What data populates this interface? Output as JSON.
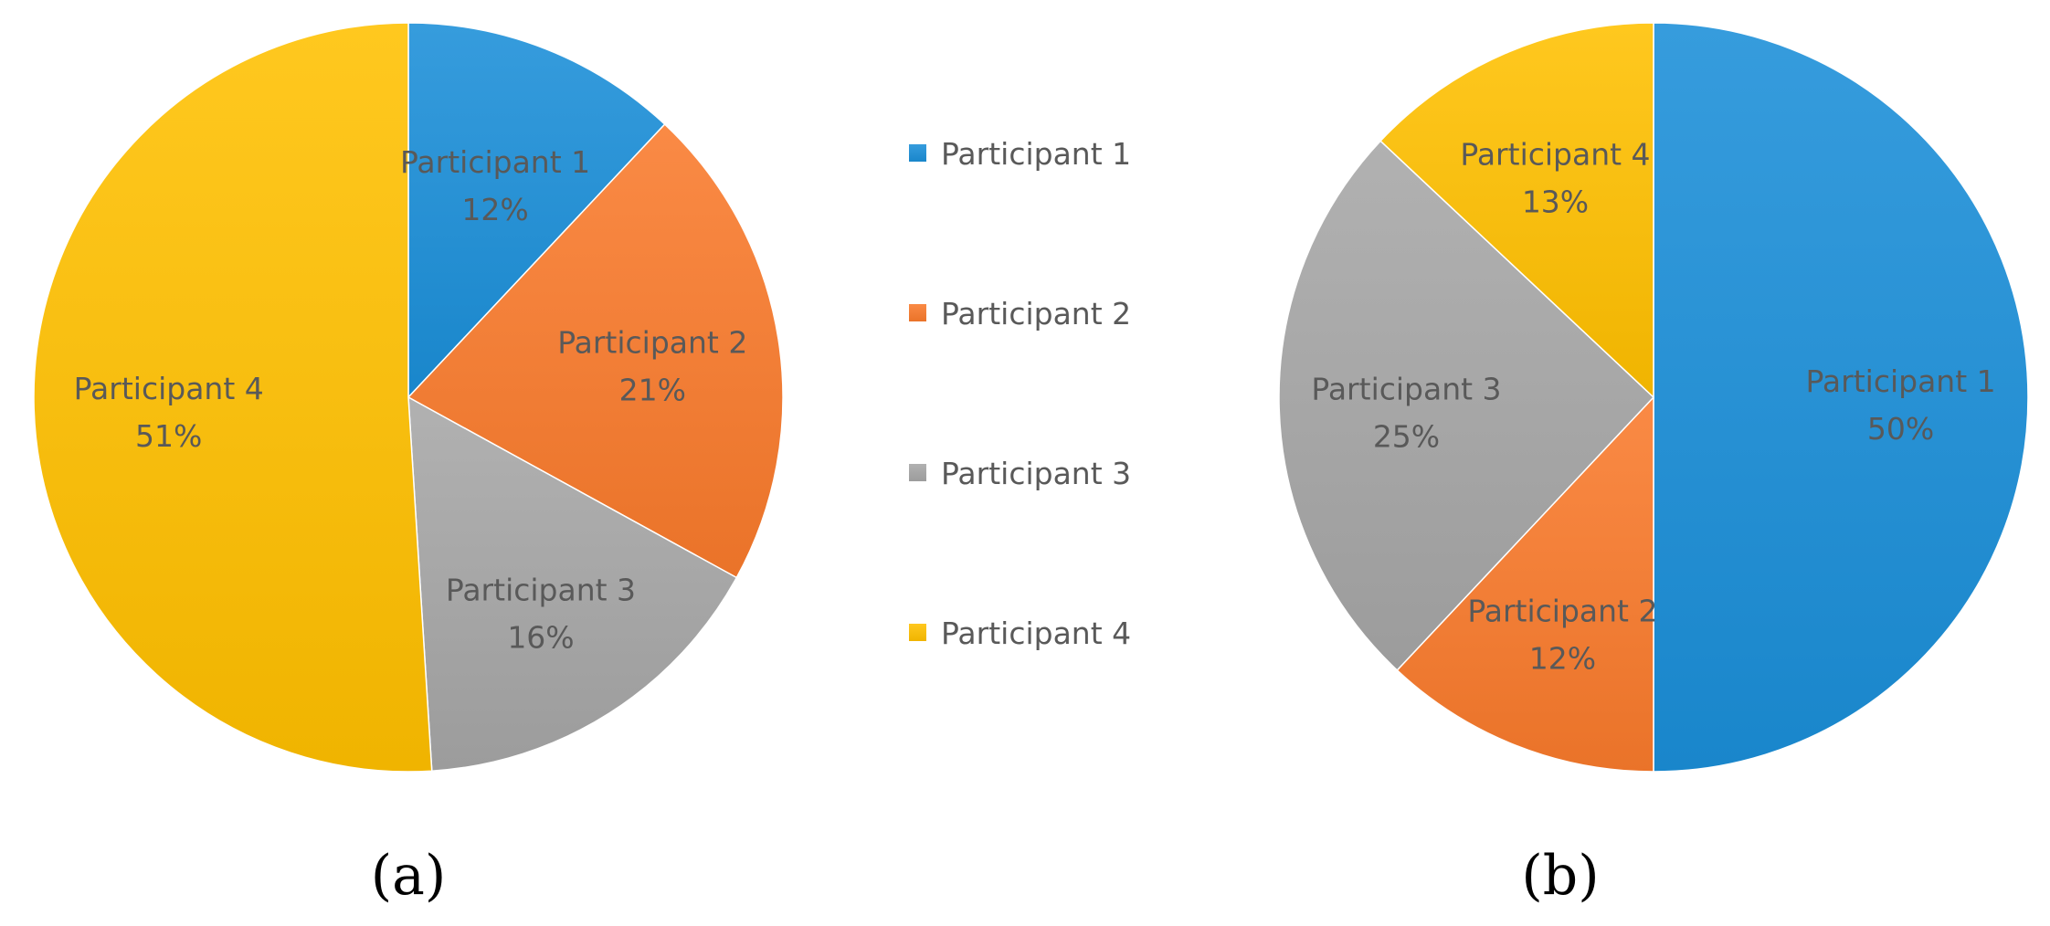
{
  "chart_data": [
    {
      "type": "pie",
      "panel_label": "(a)",
      "categories": [
        "Participant 1",
        "Participant 2",
        "Participant 3",
        "Participant 4"
      ],
      "values": [
        12,
        21,
        16,
        51
      ],
      "value_labels": [
        "12%",
        "21%",
        "16%",
        "51%"
      ],
      "colors": [
        "#1B8FD8",
        "#F97A2C",
        "#A6A6A6",
        "#FFC000"
      ],
      "start_angle_deg": 0,
      "direction": "clockwise"
    },
    {
      "type": "pie",
      "panel_label": "(b)",
      "categories": [
        "Participant 1",
        "Participant 2",
        "Participant 3",
        "Participant 4"
      ],
      "values": [
        50,
        12,
        25,
        13
      ],
      "value_labels": [
        "50%",
        "12%",
        "25%",
        "13%"
      ],
      "colors": [
        "#1B8FD8",
        "#F97A2C",
        "#A6A6A6",
        "#FFC000"
      ],
      "start_angle_deg": 0,
      "direction": "clockwise"
    }
  ],
  "legend": {
    "items": [
      "Participant 1",
      "Participant 2",
      "Participant 3",
      "Participant 4"
    ],
    "colors": [
      "#1B8FD8",
      "#F97A2C",
      "#A6A6A6",
      "#FFC000"
    ],
    "placement": "center"
  }
}
